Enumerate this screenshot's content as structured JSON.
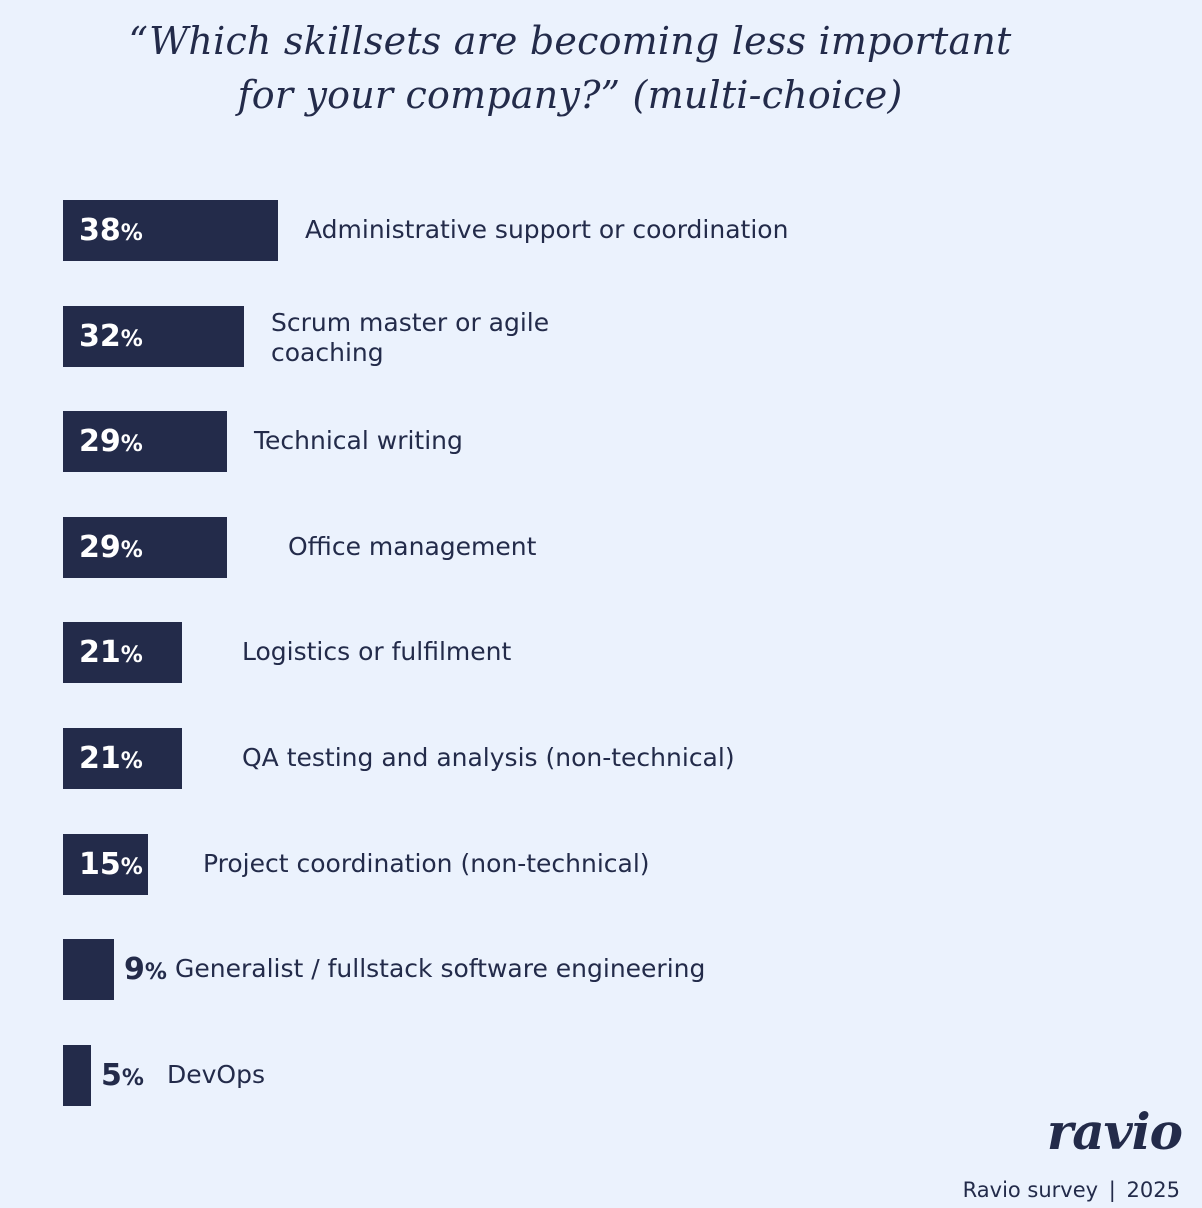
{
  "title": {
    "line1": "“Which skillsets are becoming less important",
    "line2": "for your company?”  (multi-choice)"
  },
  "chart_data": {
    "type": "bar",
    "orientation": "horizontal",
    "value_suffix": "%",
    "categories": [
      "Administrative support or coordination",
      "Scrum master or agile coaching",
      "Technical writing",
      "Office management",
      "Logistics or fulfilment",
      "QA testing and analysis (non-technical)",
      "Project coordination (non-technical)",
      "Generalist / fullstack software engineering",
      "DevOps"
    ],
    "values": [
      38,
      32,
      29,
      29,
      21,
      21,
      15,
      9,
      5
    ],
    "bar_color": "#232b4a",
    "background_color": "#ebf2fd"
  },
  "brand": {
    "logo": "ravio"
  },
  "footer": {
    "source": "Ravio survey",
    "separator": "|",
    "year": "2025"
  }
}
